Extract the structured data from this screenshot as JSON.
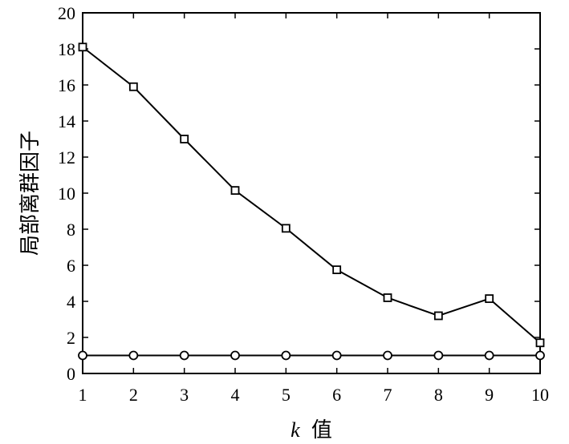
{
  "chart_data": {
    "type": "line",
    "title": "",
    "xlabel": "k 值",
    "xlabel_var": "k",
    "xlabel_rest": "值",
    "ylabel": "局部离群因子",
    "x": [
      1,
      2,
      3,
      4,
      5,
      6,
      7,
      8,
      9,
      10
    ],
    "xlim": [
      1,
      10
    ],
    "ylim": [
      0,
      20
    ],
    "x_ticks": [
      1,
      2,
      3,
      4,
      5,
      6,
      7,
      8,
      9,
      10
    ],
    "y_ticks": [
      0,
      2,
      4,
      6,
      8,
      10,
      12,
      14,
      16,
      18,
      20
    ],
    "grid": false,
    "legend": "none",
    "series": [
      {
        "marker": "square",
        "color": "#000000",
        "values": [
          18.1,
          15.9,
          13.0,
          10.15,
          8.05,
          5.75,
          4.2,
          3.2,
          4.15,
          1.7
        ]
      },
      {
        "marker": "circle",
        "color": "#000000",
        "values": [
          1,
          1,
          1,
          1,
          1,
          1,
          1,
          1,
          1,
          1
        ]
      }
    ]
  }
}
